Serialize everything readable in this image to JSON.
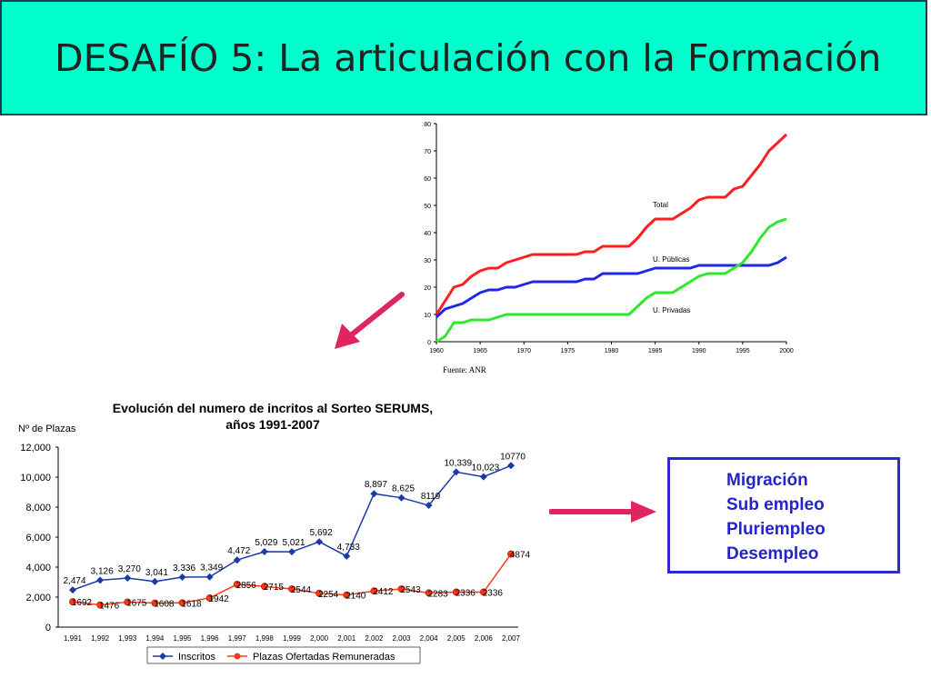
{
  "slide": {
    "title": "DESAFÍO 5: La articulación con la Formación",
    "callout_items": [
      "Migración",
      "Sub empleo",
      "Pluriempleo",
      "Desempleo"
    ],
    "colors": {
      "title_bg": "#00ffcc",
      "arrow": "#e0245e",
      "callout_border": "#2a2ad0",
      "callout_text": "#2424c8"
    },
    "icons": [
      "diagonal-arrow-icon",
      "right-arrow-icon"
    ]
  },
  "chart_data": [
    {
      "type": "line",
      "source": "Fuente: ANR",
      "xlabel": "",
      "ylabel": "",
      "xlim": [
        1960,
        2000
      ],
      "ylim": [
        0,
        80
      ],
      "x_ticks": [
        1960,
        1965,
        1970,
        1975,
        1980,
        1985,
        1990,
        1995,
        2000
      ],
      "y_ticks": [
        0,
        10,
        20,
        30,
        40,
        50,
        60,
        70,
        80
      ],
      "series": [
        {
          "name": "Total",
          "color": "#ff1e1e",
          "x": [
            1960,
            1961,
            1962,
            1963,
            1964,
            1965,
            1966,
            1967,
            1968,
            1969,
            1970,
            1971,
            1972,
            1973,
            1974,
            1975,
            1976,
            1977,
            1978,
            1979,
            1980,
            1981,
            1982,
            1983,
            1984,
            1985,
            1986,
            1987,
            1988,
            1989,
            1990,
            1991,
            1992,
            1993,
            1994,
            1995,
            1996,
            1997,
            1998,
            1999,
            2000
          ],
          "values": [
            10,
            15,
            20,
            21,
            24,
            26,
            27,
            27,
            29,
            30,
            31,
            32,
            32,
            32,
            32,
            32,
            32,
            33,
            33,
            35,
            35,
            35,
            35,
            38,
            42,
            45,
            45,
            45,
            47,
            49,
            52,
            53,
            53,
            53,
            56,
            57,
            61,
            65,
            70,
            73,
            76
          ]
        },
        {
          "name": "U. Públicas",
          "color": "#1e28e6",
          "x": [
            1960,
            1961,
            1962,
            1963,
            1964,
            1965,
            1966,
            1967,
            1968,
            1969,
            1970,
            1971,
            1972,
            1973,
            1974,
            1975,
            1976,
            1977,
            1978,
            1979,
            1980,
            1981,
            1982,
            1983,
            1984,
            1985,
            1986,
            1987,
            1988,
            1989,
            1990,
            1991,
            1992,
            1993,
            1994,
            1995,
            1996,
            1997,
            1998,
            1999,
            2000
          ],
          "values": [
            9,
            12,
            13,
            14,
            16,
            18,
            19,
            19,
            20,
            20,
            21,
            22,
            22,
            22,
            22,
            22,
            22,
            23,
            23,
            25,
            25,
            25,
            25,
            25,
            26,
            27,
            27,
            27,
            27,
            27,
            28,
            28,
            28,
            28,
            28,
            28,
            28,
            28,
            28,
            29,
            31
          ]
        },
        {
          "name": "U. Privadas",
          "color": "#2ee82e",
          "x": [
            1960,
            1961,
            1962,
            1963,
            1964,
            1965,
            1966,
            1967,
            1968,
            1969,
            1970,
            1971,
            1972,
            1973,
            1974,
            1975,
            1976,
            1977,
            1978,
            1979,
            1980,
            1981,
            1982,
            1983,
            1984,
            1985,
            1986,
            1987,
            1988,
            1989,
            1990,
            1991,
            1992,
            1993,
            1994,
            1995,
            1996,
            1997,
            1998,
            1999,
            2000
          ],
          "values": [
            0,
            2,
            7,
            7,
            8,
            8,
            8,
            9,
            10,
            10,
            10,
            10,
            10,
            10,
            10,
            10,
            10,
            10,
            10,
            10,
            10,
            10,
            10,
            13,
            16,
            18,
            18,
            18,
            20,
            22,
            24,
            25,
            25,
            25,
            27,
            29,
            33,
            38,
            42,
            44,
            45
          ]
        }
      ]
    },
    {
      "type": "line",
      "title": "Evolución del numero de incritos al Sorteo SERUMS,",
      "subtitle": "años 1991-2007",
      "ylabel": "Nº de Plazas",
      "xlabel": "",
      "ylim": [
        0,
        12000
      ],
      "y_ticks": [
        0,
        2000,
        4000,
        6000,
        8000,
        10000,
        12000
      ],
      "y_tick_labels": [
        "0",
        "2,000",
        "4,000",
        "6,000",
        "8,000",
        "10,000",
        "12,000"
      ],
      "categories": [
        "1,991",
        "1,992",
        "1,993",
        "1,994",
        "1,995",
        "1,996",
        "1,997",
        "1,998",
        "1,999",
        "2,000",
        "2,001",
        "2,002",
        "2,003",
        "2,004",
        "2,005",
        "2,006",
        "2,007"
      ],
      "legend": "bottom",
      "series": [
        {
          "name": "Inscritos",
          "color": "#1a3aa8",
          "marker": "diamond",
          "values": [
            2474,
            3126,
            3270,
            3041,
            3336,
            3349,
            4472,
            5029,
            5021,
            5692,
            4733,
            8897,
            8625,
            8119,
            10339,
            10023,
            10770
          ],
          "labels": [
            "2,474",
            "3,126",
            "3,270",
            "3,041",
            "3,336",
            "3,349",
            "4,472",
            "5,029",
            "5,021",
            "5,692",
            "4,733",
            "8,897",
            "8,625",
            "8119",
            "10,339",
            "10,023",
            "10770"
          ]
        },
        {
          "name": "Plazas Ofertadas Remuneradas",
          "color": "#ff3a1a",
          "marker": "circle",
          "values": [
            1692,
            1476,
            1675,
            1608,
            1618,
            1942,
            2856,
            2715,
            2544,
            2254,
            2140,
            2412,
            2543,
            2283,
            2336,
            2336,
            4874
          ],
          "labels": [
            "1692",
            "1476",
            "1675",
            "1608",
            "1618",
            "1942",
            "2856",
            "2715",
            "2544",
            "2254",
            "2140",
            "2412",
            "2543",
            "2283",
            "2336",
            "2336",
            "4874"
          ]
        }
      ]
    }
  ]
}
